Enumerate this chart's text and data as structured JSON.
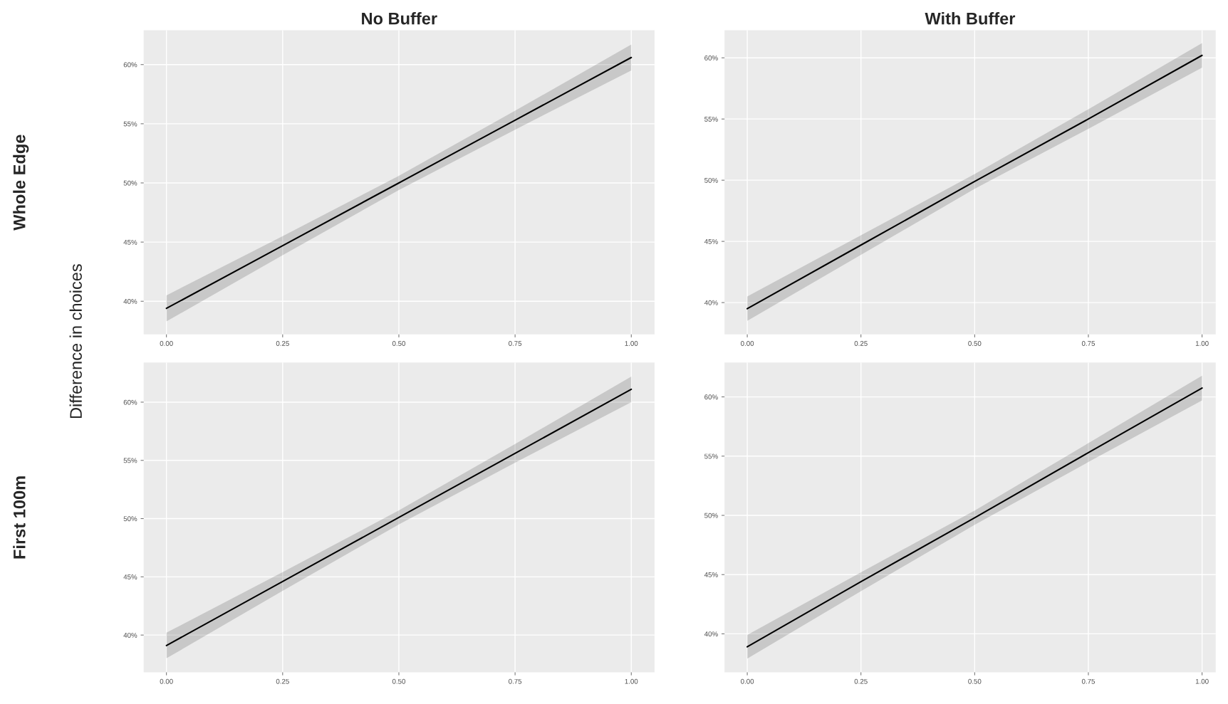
{
  "chart_data": [
    {
      "type": "line",
      "title": "No Buffer",
      "ylabel": "Difference in choices",
      "annotations": [
        "Whole Edge"
      ],
      "x": [
        0,
        0.25,
        0.5,
        0.75,
        1
      ],
      "series": [
        {
          "color": "#000000",
          "values": [
            39.4,
            44.7,
            50.0,
            55.3,
            60.6
          ],
          "lower": [
            38.3,
            43.9,
            49.4,
            54.5,
            59.5
          ],
          "upper": [
            40.5,
            45.5,
            50.6,
            56.1,
            61.7
          ]
        }
      ],
      "xlim": [
        -0.049,
        1.05
      ],
      "ylim": [
        37.2,
        62.9
      ],
      "xticks": [
        {
          "value": 0,
          "label": "0.00"
        },
        {
          "value": 0.25,
          "label": "0.25"
        },
        {
          "value": 0.5,
          "label": "0.50"
        },
        {
          "value": 0.75,
          "label": "0.75"
        },
        {
          "value": 1,
          "label": "1.00"
        }
      ],
      "yticks": [
        {
          "value": 40,
          "label": "40%"
        },
        {
          "value": 45,
          "label": "45%"
        },
        {
          "value": 50,
          "label": "50%"
        },
        {
          "value": 55,
          "label": "55%"
        },
        {
          "value": 60,
          "label": "60%"
        }
      ],
      "grid": true
    },
    {
      "type": "line",
      "title": "With Buffer",
      "x": [
        0,
        0.25,
        0.5,
        0.75,
        1
      ],
      "series": [
        {
          "color": "#000000",
          "values": [
            39.5,
            44.7,
            49.9,
            55.0,
            60.2
          ],
          "lower": [
            38.5,
            43.9,
            49.3,
            54.2,
            59.2
          ],
          "upper": [
            40.5,
            45.5,
            50.5,
            55.8,
            61.2
          ]
        }
      ],
      "xlim": [
        -0.05,
        1.03
      ],
      "ylim": [
        37.4,
        62.25
      ],
      "xticks": [
        {
          "value": 0,
          "label": "0.00"
        },
        {
          "value": 0.25,
          "label": "0.25"
        },
        {
          "value": 0.5,
          "label": "0.50"
        },
        {
          "value": 0.75,
          "label": "0.75"
        },
        {
          "value": 1,
          "label": "1.00"
        }
      ],
      "yticks": [
        {
          "value": 40,
          "label": "40%"
        },
        {
          "value": 45,
          "label": "45%"
        },
        {
          "value": 50,
          "label": "50%"
        },
        {
          "value": 55,
          "label": "55%"
        },
        {
          "value": 60,
          "label": "60%"
        }
      ],
      "grid": true
    },
    {
      "type": "line",
      "annotations": [
        "First 100m"
      ],
      "x": [
        0,
        0.25,
        0.5,
        0.75,
        1
      ],
      "series": [
        {
          "color": "#000000",
          "values": [
            39.1,
            44.6,
            50.1,
            55.6,
            61.1
          ],
          "lower": [
            38.0,
            43.8,
            49.5,
            54.8,
            60.0
          ],
          "upper": [
            40.2,
            45.4,
            50.7,
            56.4,
            62.2
          ]
        }
      ],
      "xlim": [
        -0.049,
        1.05
      ],
      "ylim": [
        36.8,
        63.4
      ],
      "xticks": [
        {
          "value": 0,
          "label": "0.00"
        },
        {
          "value": 0.25,
          "label": "0.25"
        },
        {
          "value": 0.5,
          "label": "0.50"
        },
        {
          "value": 0.75,
          "label": "0.75"
        },
        {
          "value": 1,
          "label": "1.00"
        }
      ],
      "yticks": [
        {
          "value": 40,
          "label": "40%"
        },
        {
          "value": 45,
          "label": "45%"
        },
        {
          "value": 50,
          "label": "50%"
        },
        {
          "value": 55,
          "label": "55%"
        },
        {
          "value": 60,
          "label": "60%"
        }
      ],
      "grid": true
    },
    {
      "type": "line",
      "x": [
        0,
        0.25,
        0.5,
        0.75,
        1
      ],
      "series": [
        {
          "color": "#000000",
          "values": [
            38.9,
            44.4,
            49.8,
            55.3,
            60.75
          ],
          "lower": [
            37.9,
            43.6,
            49.2,
            54.5,
            59.7
          ],
          "upper": [
            39.9,
            45.2,
            50.4,
            56.1,
            61.8
          ]
        }
      ],
      "xlim": [
        -0.05,
        1.03
      ],
      "ylim": [
        36.75,
        62.9
      ],
      "xticks": [
        {
          "value": 0,
          "label": "0.00"
        },
        {
          "value": 0.25,
          "label": "0.25"
        },
        {
          "value": 0.5,
          "label": "0.50"
        },
        {
          "value": 0.75,
          "label": "0.75"
        },
        {
          "value": 1,
          "label": "1.00"
        }
      ],
      "yticks": [
        {
          "value": 40,
          "label": "40%"
        },
        {
          "value": 45,
          "label": "45%"
        },
        {
          "value": 50,
          "label": "50%"
        },
        {
          "value": 55,
          "label": "55%"
        },
        {
          "value": 60,
          "label": "60%"
        }
      ],
      "grid": true
    }
  ]
}
